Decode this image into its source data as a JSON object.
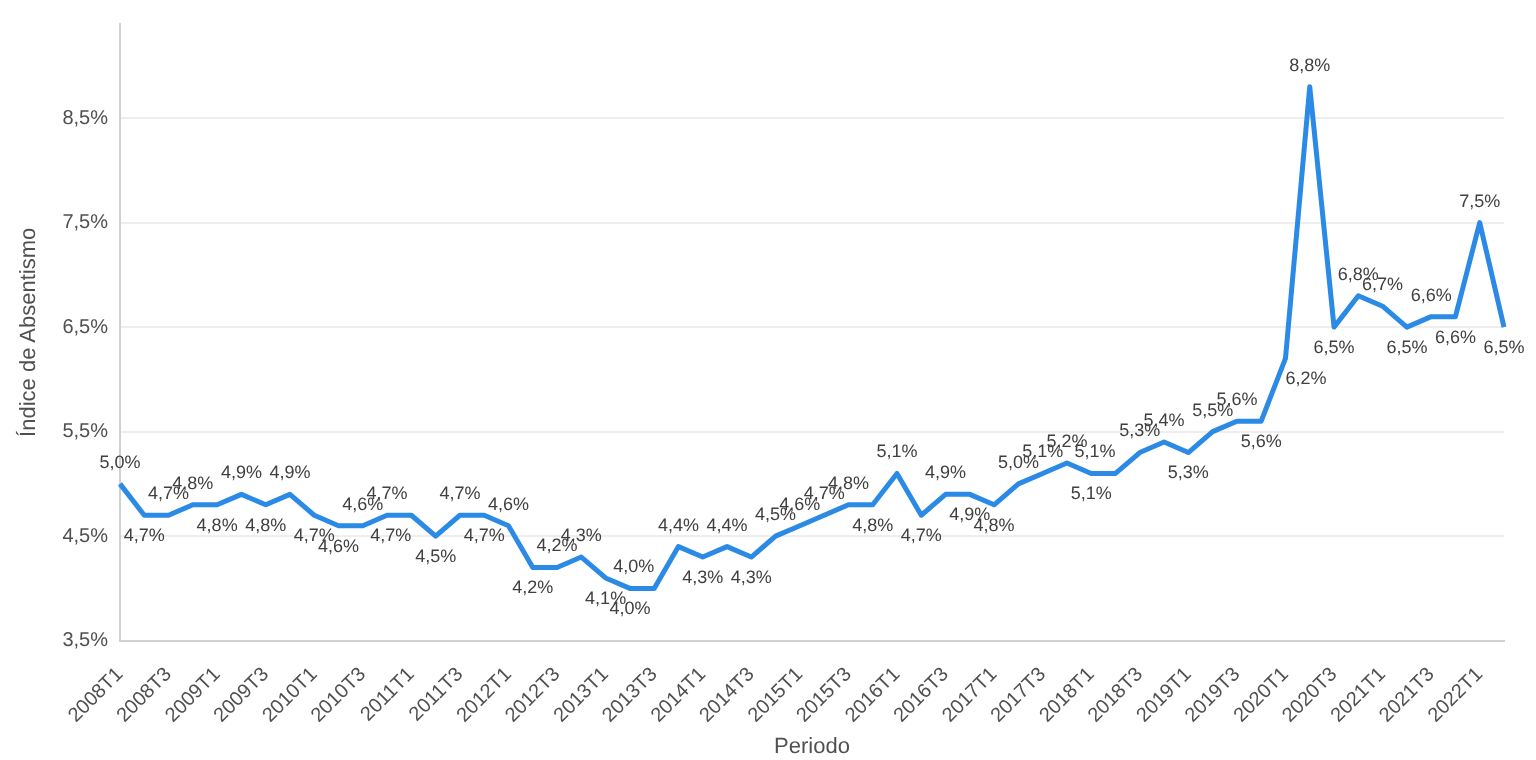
{
  "chart_data": {
    "type": "line",
    "xlabel": "Periodo",
    "ylabel": "Índice de Absentismo",
    "categories": [
      "2008T1",
      null,
      "2008T3",
      null,
      "2009T1",
      null,
      "2009T3",
      null,
      "2010T1",
      null,
      "2010T3",
      null,
      "2011T1",
      null,
      "2011T3",
      null,
      "2012T1",
      null,
      "2012T3",
      null,
      "2013T1",
      null,
      "2013T3",
      null,
      "2014T1",
      null,
      "2014T3",
      null,
      "2015T1",
      null,
      "2015T3",
      null,
      "2016T1",
      null,
      "2016T3",
      null,
      "2017T1",
      null,
      "2017T3",
      null,
      "2018T1",
      null,
      "2018T3",
      null,
      "2019T1",
      null,
      "2019T3",
      null,
      "2020T1",
      null,
      "2020T3",
      null,
      "2021T1",
      null,
      "2021T3",
      null,
      "2022T1",
      null
    ],
    "series": [
      {
        "color": "#2b8ae6",
        "values": [
          5.0,
          4.7,
          4.7,
          4.8,
          4.8,
          4.9,
          4.8,
          4.9,
          4.7,
          4.6,
          4.6,
          4.7,
          4.7,
          4.5,
          4.7,
          4.7,
          4.6,
          4.2,
          4.2,
          4.3,
          4.1,
          4.0,
          4.0,
          4.4,
          4.3,
          4.4,
          4.3,
          4.5,
          4.6,
          4.7,
          4.8,
          4.8,
          5.1,
          4.7,
          4.9,
          4.9,
          4.8,
          5.0,
          5.1,
          5.2,
          5.1,
          5.1,
          5.3,
          5.4,
          5.3,
          5.5,
          5.6,
          5.6,
          6.2,
          8.8,
          6.5,
          6.8,
          6.7,
          6.5,
          6.6,
          6.6,
          7.5,
          6.5
        ],
        "value_labels": [
          "5,0%",
          "4,7%",
          "4,7%",
          "4,8%",
          "4,8%",
          "4,9%",
          "4,8%",
          "4,9%",
          "4,7%",
          "4,6%",
          "4,6%",
          "4,7%",
          "4,7%",
          "4,5%",
          "4,7%",
          "4,7%",
          "4,6%",
          "4,2%",
          "4,2%",
          "4,3%",
          "4,1%",
          "4,0%",
          "4,0%",
          "4,4%",
          "4,3%",
          "4,4%",
          "4,3%",
          "4,5%",
          "4,6%",
          "4,7%",
          "4,8%",
          "4,8%",
          "5,1%",
          "4,7%",
          "4,9%",
          "4,9%",
          "4,8%",
          "5,0%",
          "5,1%",
          "5,2%",
          "5,1%",
          "5,1%",
          "5,3%",
          "5,4%",
          "5,3%",
          "5,5%",
          "5,6%",
          "5,6%",
          "6,2%",
          "8,8%",
          "6,5%",
          "6,8%",
          "6,7%",
          "6,5%",
          "6,6%",
          "6,6%",
          "7,5%",
          "6,5%"
        ]
      }
    ],
    "ylim": [
      3.5,
      9.4
    ],
    "yticks": [
      {
        "value": 3.5,
        "label": "3,5%"
      },
      {
        "value": 4.5,
        "label": "4,5%"
      },
      {
        "value": 5.5,
        "label": "5,5%"
      },
      {
        "value": 6.5,
        "label": "6,5%"
      },
      {
        "value": 7.5,
        "label": "7,5%"
      },
      {
        "value": 8.5,
        "label": "8,5%"
      }
    ],
    "grid": "y",
    "marker": "none",
    "line_style": "solid"
  }
}
